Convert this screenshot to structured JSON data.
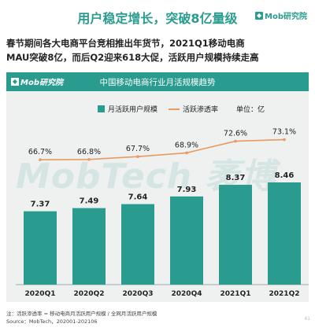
{
  "page": {
    "title": "用户稳定增长，突破8亿量级",
    "brand": "Mob研究院",
    "headline_line1": "春节期间各大电商平台竞相推出年货节，2021Q1移动电商",
    "headline_line2": "MAU突破8亿，而后Q2迎来618大促，活跃用户规模持续走高",
    "panel_brand": "Mob研究院",
    "watermark": "MobTech 袤博",
    "footnote": "注：活跃渗透率 = 移动电商月活跃用户规模 / 全网月活跃用户规模",
    "source": "Source：MobTech，202001-202106",
    "page_number": "41"
  },
  "colors": {
    "accent": "#2a9c8f",
    "line": "#e79a62",
    "panel_bg": "#eef1f0"
  },
  "chart_data": {
    "type": "bar",
    "title": "中国移动电商行业月活规模趋势",
    "unit_label": "单位：亿",
    "categories": [
      "2020Q1",
      "2020Q2",
      "2020Q3",
      "2020Q4",
      "2021Q1",
      "2021Q2"
    ],
    "series": [
      {
        "name": "月活跃用户规模",
        "type": "bar",
        "values": [
          7.37,
          7.49,
          7.64,
          7.93,
          8.37,
          8.46
        ],
        "labels": [
          "7.37",
          "7.49",
          "7.64",
          "7.93",
          "8.37",
          "8.46"
        ]
      },
      {
        "name": "活跃渗透率",
        "type": "line",
        "values": [
          66.7,
          66.8,
          67.7,
          68.9,
          72.6,
          73.1
        ],
        "labels": [
          "66.7%",
          "66.8%",
          "67.7%",
          "68.9%",
          "72.6%",
          "73.1%"
        ]
      }
    ],
    "legend_position": "top",
    "grid": false
  }
}
